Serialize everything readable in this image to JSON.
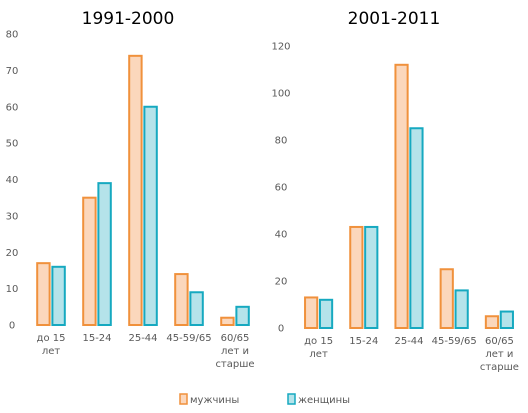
{
  "chart_data": [
    {
      "type": "bar",
      "title": "1991-2000",
      "categories": [
        [
          "до 15",
          "лет"
        ],
        [
          "15-24"
        ],
        [
          "25-44"
        ],
        [
          "45-59/65"
        ],
        [
          "60/65",
          "лет и",
          "старше"
        ]
      ],
      "yticks": [
        0,
        10,
        20,
        30,
        40,
        50,
        60,
        70,
        80
      ],
      "ylim": [
        0,
        80
      ],
      "series": [
        {
          "name": "мужчины",
          "values": [
            17,
            35,
            74,
            14,
            2
          ]
        },
        {
          "name": "женщины",
          "values": [
            16,
            39,
            60,
            9,
            5
          ]
        }
      ]
    },
    {
      "type": "bar",
      "title": "2001-2011",
      "categories": [
        [
          "до 15",
          "лет"
        ],
        [
          "15-24"
        ],
        [
          "25-44"
        ],
        [
          "45-59/65"
        ],
        [
          "60/65",
          "лет и",
          "старше"
        ]
      ],
      "yticks": [
        0,
        20,
        40,
        60,
        80,
        100,
        120
      ],
      "ylim": [
        0,
        120
      ],
      "series": [
        {
          "name": "мужчины",
          "values": [
            13,
            43,
            112,
            25,
            5
          ]
        },
        {
          "name": "женщины",
          "values": [
            12,
            43,
            85,
            16,
            7
          ]
        }
      ]
    }
  ],
  "legend": {
    "placement": "bottom",
    "items": [
      {
        "label": "мужчины",
        "fill": "#fbd7bc",
        "stroke": "#f0913c"
      },
      {
        "label": "женщины",
        "fill": "#b5e3ea",
        "stroke": "#16a9c0"
      }
    ]
  },
  "colors": {
    "men_fill": "#fbd7bc",
    "men_stroke": "#f0913c",
    "women_fill": "#b5e3ea",
    "women_stroke": "#16a9c0"
  }
}
